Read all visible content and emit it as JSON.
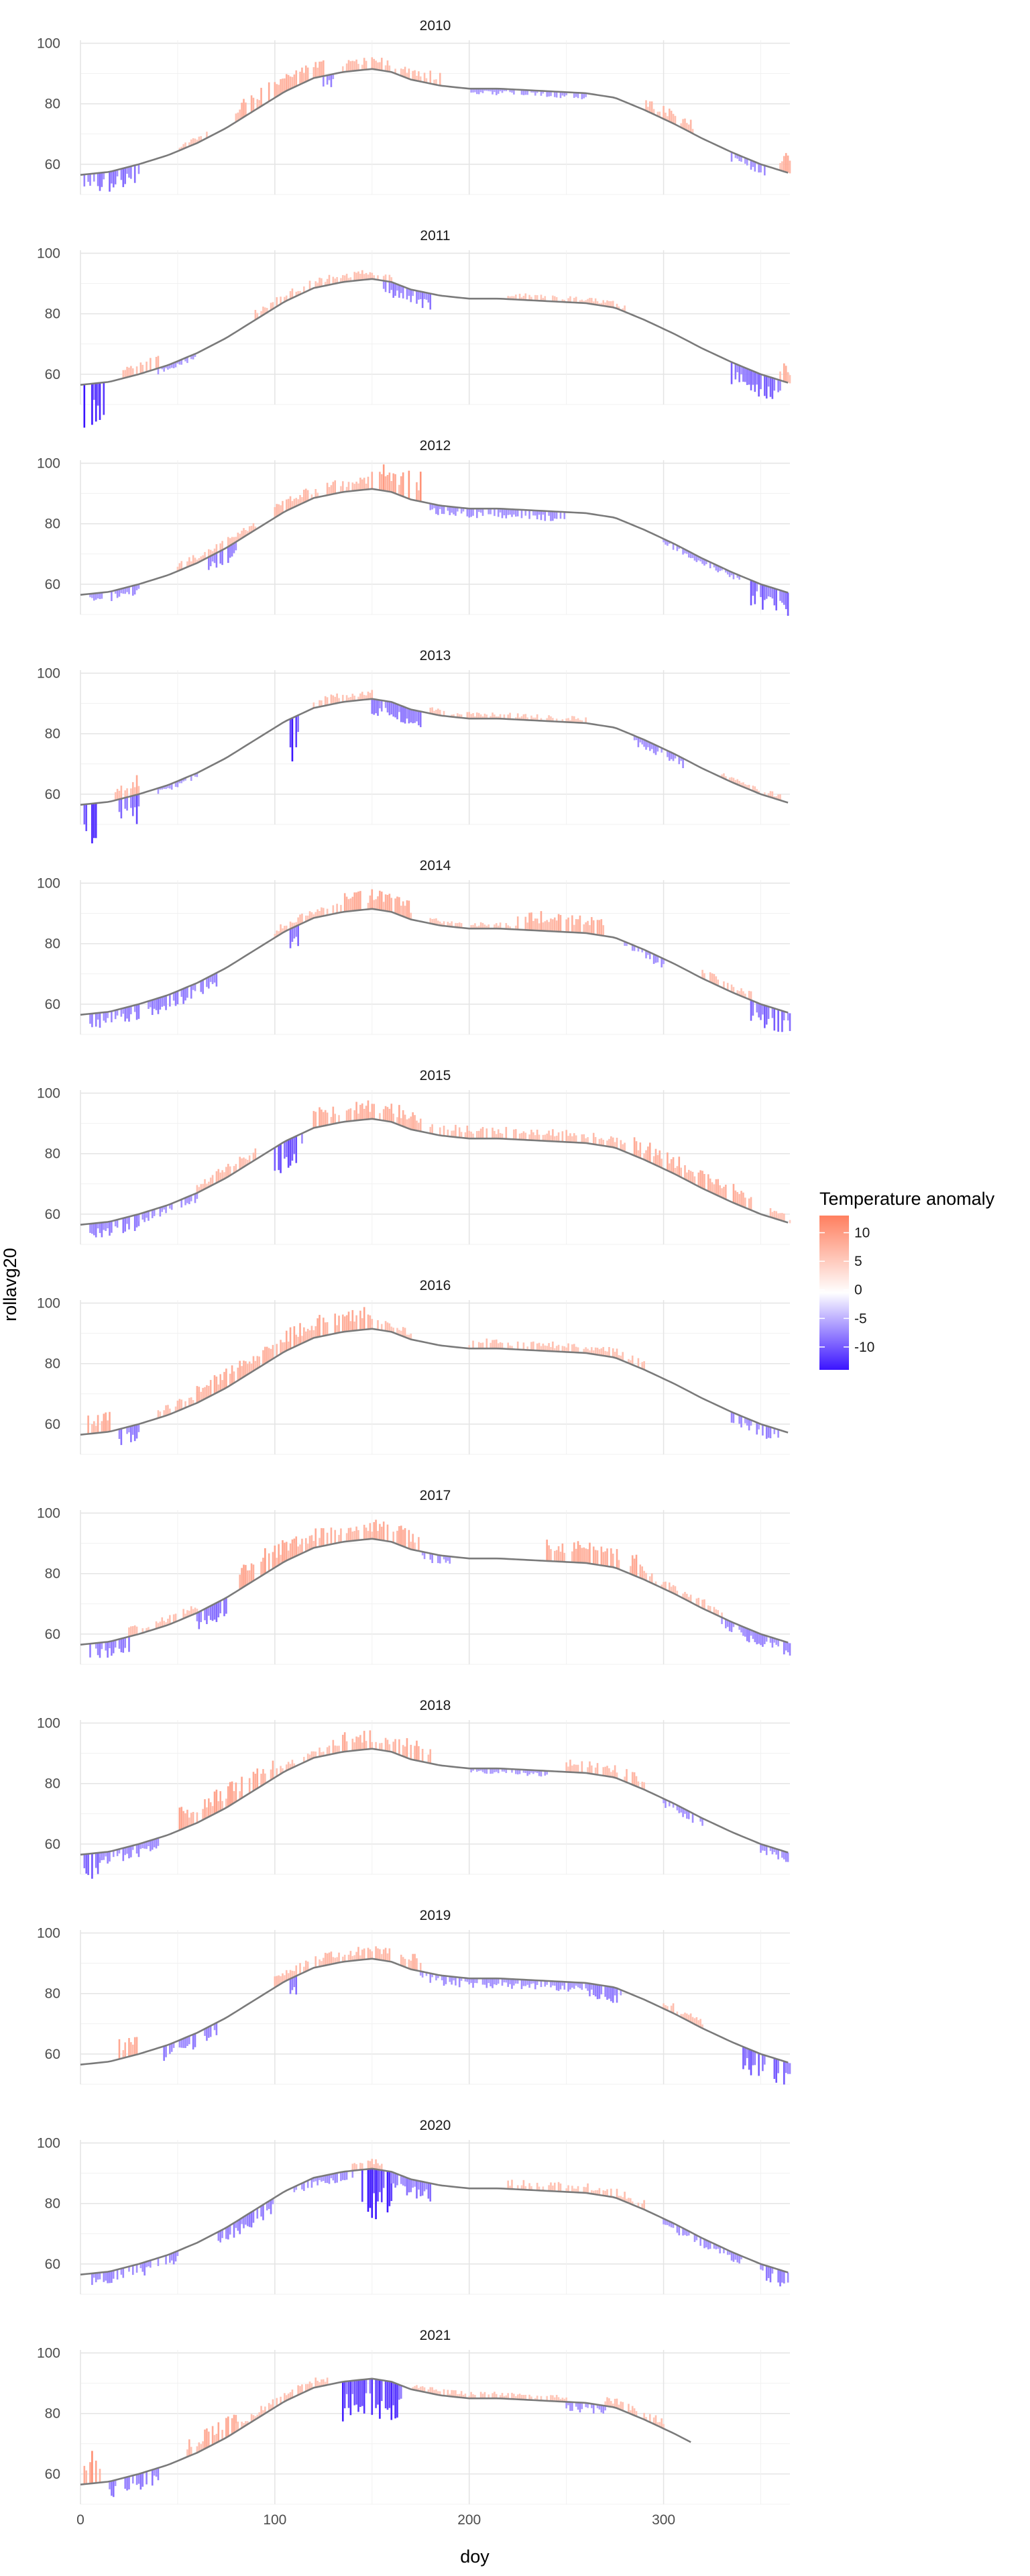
{
  "chart_data": {
    "type": "bar",
    "facet_by": "year",
    "panels": [
      "2010",
      "2011",
      "2012",
      "2013",
      "2014",
      "2015",
      "2016",
      "2017",
      "2018",
      "2019",
      "2020",
      "2021"
    ],
    "xlabel": "doy",
    "ylabel": "rollavg20",
    "xlim": [
      0,
      365
    ],
    "ylim": [
      50,
      101
    ],
    "x_ticks": [
      0,
      100,
      200,
      300
    ],
    "y_ticks": [
      60,
      80,
      100
    ],
    "grid": true,
    "legend": {
      "title": "Temperature anomaly",
      "placement": "right",
      "ticks": [
        10,
        5,
        0,
        -5,
        -10
      ],
      "range": [
        -14,
        13
      ],
      "colors": {
        "high": "#ff7f5f",
        "mid": "#ffffff",
        "low": "#3b14ff"
      }
    },
    "series_colors": {
      "rollavg_line": "#7a7a7a"
    },
    "baseline": [
      [
        0,
        56.5
      ],
      [
        15,
        57.5
      ],
      [
        30,
        60
      ],
      [
        45,
        63
      ],
      [
        60,
        67
      ],
      [
        75,
        72
      ],
      [
        90,
        78
      ],
      [
        105,
        84
      ],
      [
        120,
        88.5
      ],
      [
        135,
        90.5
      ],
      [
        150,
        91.5
      ],
      [
        160,
        90.5
      ],
      [
        170,
        88
      ],
      [
        185,
        86
      ],
      [
        200,
        85
      ],
      [
        215,
        85
      ],
      [
        230,
        84.5
      ],
      [
        245,
        84
      ],
      [
        260,
        83.5
      ],
      [
        275,
        82
      ],
      [
        290,
        78
      ],
      [
        305,
        73.5
      ],
      [
        320,
        68.5
      ],
      [
        335,
        64
      ],
      [
        350,
        60
      ],
      [
        365,
        57
      ]
    ],
    "year_end_doy": {
      "2021": 315
    },
    "anomaly_events": [
      {
        "year": "2010",
        "doy": [
          2,
          30
        ],
        "anomaly": -6
      },
      {
        "year": "2010",
        "doy": [
          50,
          65
        ],
        "anomaly": 2
      },
      {
        "year": "2010",
        "doy": [
          80,
          125
        ],
        "anomaly": 6
      },
      {
        "year": "2010",
        "doy": [
          125,
          130
        ],
        "anomaly": -4
      },
      {
        "year": "2010",
        "doy": [
          135,
          185
        ],
        "anomaly": 4
      },
      {
        "year": "2010",
        "doy": [
          200,
          260
        ],
        "anomaly": -2
      },
      {
        "year": "2010",
        "doy": [
          290,
          315
        ],
        "anomaly": 4
      },
      {
        "year": "2010",
        "doy": [
          335,
          355
        ],
        "anomaly": -3
      },
      {
        "year": "2010",
        "doy": [
          360,
          365
        ],
        "anomaly": 6
      },
      {
        "year": "2011",
        "doy": [
          2,
          12
        ],
        "anomaly": -13
      },
      {
        "year": "2011",
        "doy": [
          20,
          40
        ],
        "anomaly": 4
      },
      {
        "year": "2011",
        "doy": [
          40,
          60
        ],
        "anomaly": -2
      },
      {
        "year": "2011",
        "doy": [
          90,
          120
        ],
        "anomaly": 3
      },
      {
        "year": "2011",
        "doy": [
          120,
          160
        ],
        "anomaly": 3
      },
      {
        "year": "2011",
        "doy": [
          155,
          180
        ],
        "anomaly": -5
      },
      {
        "year": "2011",
        "doy": [
          220,
          280
        ],
        "anomaly": 2
      },
      {
        "year": "2011",
        "doy": [
          335,
          360
        ],
        "anomaly": -7
      },
      {
        "year": "2011",
        "doy": [
          360,
          365
        ],
        "anomaly": 6
      },
      {
        "year": "2012",
        "doy": [
          5,
          30
        ],
        "anomaly": -3
      },
      {
        "year": "2012",
        "doy": [
          50,
          90
        ],
        "anomaly": 3
      },
      {
        "year": "2012",
        "doy": [
          65,
          80
        ],
        "anomaly": -5
      },
      {
        "year": "2012",
        "doy": [
          100,
          150
        ],
        "anomaly": 4
      },
      {
        "year": "2012",
        "doy": [
          150,
          175
        ],
        "anomaly": 9
      },
      {
        "year": "2012",
        "doy": [
          180,
          250
        ],
        "anomaly": -3
      },
      {
        "year": "2012",
        "doy": [
          300,
          340
        ],
        "anomaly": -2
      },
      {
        "year": "2012",
        "doy": [
          345,
          365
        ],
        "anomaly": -8
      },
      {
        "year": "2013",
        "doy": [
          2,
          10
        ],
        "anomaly": -12
      },
      {
        "year": "2013",
        "doy": [
          18,
          30
        ],
        "anomaly": 6
      },
      {
        "year": "2013",
        "doy": [
          20,
          30
        ],
        "anomaly": -9
      },
      {
        "year": "2013",
        "doy": [
          40,
          60
        ],
        "anomaly": -2
      },
      {
        "year": "2013",
        "doy": [
          108,
          112
        ],
        "anomaly": -14
      },
      {
        "year": "2013",
        "doy": [
          120,
          150
        ],
        "anomaly": 3
      },
      {
        "year": "2013",
        "doy": [
          150,
          175
        ],
        "anomaly": -5
      },
      {
        "year": "2013",
        "doy": [
          180,
          260
        ],
        "anomaly": 2
      },
      {
        "year": "2013",
        "doy": [
          285,
          310
        ],
        "anomaly": -3
      },
      {
        "year": "2013",
        "doy": [
          330,
          360
        ],
        "anomaly": 2
      },
      {
        "year": "2014",
        "doy": [
          5,
          30
        ],
        "anomaly": -5
      },
      {
        "year": "2014",
        "doy": [
          35,
          70
        ],
        "anomaly": -5
      },
      {
        "year": "2014",
        "doy": [
          100,
          130
        ],
        "anomaly": 3
      },
      {
        "year": "2014",
        "doy": [
          108,
          112
        ],
        "anomaly": -8
      },
      {
        "year": "2014",
        "doy": [
          130,
          170
        ],
        "anomaly": 6
      },
      {
        "year": "2014",
        "doy": [
          180,
          225
        ],
        "anomaly": 2
      },
      {
        "year": "2014",
        "doy": [
          225,
          270
        ],
        "anomaly": 6
      },
      {
        "year": "2014",
        "doy": [
          280,
          300
        ],
        "anomaly": -3
      },
      {
        "year": "2014",
        "doy": [
          320,
          345
        ],
        "anomaly": 3
      },
      {
        "year": "2014",
        "doy": [
          345,
          365
        ],
        "anomaly": -7
      },
      {
        "year": "2015",
        "doy": [
          5,
          30
        ],
        "anomaly": -5
      },
      {
        "year": "2015",
        "doy": [
          30,
          60
        ],
        "anomaly": -3
      },
      {
        "year": "2015",
        "doy": [
          60,
          90
        ],
        "anomaly": 4
      },
      {
        "year": "2015",
        "doy": [
          100,
          115
        ],
        "anomaly": -9
      },
      {
        "year": "2015",
        "doy": [
          120,
          175
        ],
        "anomaly": 6
      },
      {
        "year": "2015",
        "doy": [
          180,
          280
        ],
        "anomaly": 4
      },
      {
        "year": "2015",
        "doy": [
          285,
          345
        ],
        "anomaly": 6
      },
      {
        "year": "2015",
        "doy": [
          355,
          365
        ],
        "anomaly": 3
      },
      {
        "year": "2016",
        "doy": [
          2,
          15
        ],
        "anomaly": 6
      },
      {
        "year": "2016",
        "doy": [
          20,
          30
        ],
        "anomaly": -5
      },
      {
        "year": "2016",
        "doy": [
          40,
          60
        ],
        "anomaly": 4
      },
      {
        "year": "2016",
        "doy": [
          60,
          100
        ],
        "anomaly": 6
      },
      {
        "year": "2016",
        "doy": [
          100,
          150
        ],
        "anomaly": 7
      },
      {
        "year": "2016",
        "doy": [
          150,
          170
        ],
        "anomaly": 3
      },
      {
        "year": "2016",
        "doy": [
          200,
          290
        ],
        "anomaly": 3
      },
      {
        "year": "2016",
        "doy": [
          335,
          360
        ],
        "anomaly": -4
      },
      {
        "year": "2017",
        "doy": [
          5,
          25
        ],
        "anomaly": -5
      },
      {
        "year": "2017",
        "doy": [
          25,
          60
        ],
        "anomaly": 3
      },
      {
        "year": "2017",
        "doy": [
          60,
          75
        ],
        "anomaly": -6
      },
      {
        "year": "2017",
        "doy": [
          80,
          110
        ],
        "anomaly": 8
      },
      {
        "year": "2017",
        "doy": [
          110,
          175
        ],
        "anomaly": 6
      },
      {
        "year": "2017",
        "doy": [
          175,
          190
        ],
        "anomaly": -3
      },
      {
        "year": "2017",
        "doy": [
          240,
          290
        ],
        "anomaly": 7
      },
      {
        "year": "2017",
        "doy": [
          290,
          330
        ],
        "anomaly": 3
      },
      {
        "year": "2017",
        "doy": [
          330,
          365
        ],
        "anomaly": -4
      },
      {
        "year": "2018",
        "doy": [
          2,
          10
        ],
        "anomaly": -9
      },
      {
        "year": "2018",
        "doy": [
          10,
          40
        ],
        "anomaly": -4
      },
      {
        "year": "2018",
        "doy": [
          50,
          100
        ],
        "anomaly": 7
      },
      {
        "year": "2018",
        "doy": [
          100,
          130
        ],
        "anomaly": 3
      },
      {
        "year": "2018",
        "doy": [
          130,
          180
        ],
        "anomaly": 6
      },
      {
        "year": "2018",
        "doy": [
          200,
          240
        ],
        "anomaly": -2
      },
      {
        "year": "2018",
        "doy": [
          250,
          290
        ],
        "anomaly": 4
      },
      {
        "year": "2018",
        "doy": [
          300,
          320
        ],
        "anomaly": -3
      },
      {
        "year": "2018",
        "doy": [
          350,
          365
        ],
        "anomaly": -3
      },
      {
        "year": "2019",
        "doy": [
          20,
          30
        ],
        "anomaly": 6
      },
      {
        "year": "2019",
        "doy": [
          40,
          70
        ],
        "anomaly": -5
      },
      {
        "year": "2019",
        "doy": [
          100,
          160
        ],
        "anomaly": 4
      },
      {
        "year": "2019",
        "doy": [
          108,
          112
        ],
        "anomaly": -7
      },
      {
        "year": "2019",
        "doy": [
          165,
          175
        ],
        "anomaly": 6
      },
      {
        "year": "2019",
        "doy": [
          175,
          260
        ],
        "anomaly": -3
      },
      {
        "year": "2019",
        "doy": [
          260,
          280
        ],
        "anomaly": -5
      },
      {
        "year": "2019",
        "doy": [
          300,
          320
        ],
        "anomaly": 3
      },
      {
        "year": "2019",
        "doy": [
          340,
          365
        ],
        "anomaly": -8
      },
      {
        "year": "2020",
        "doy": [
          5,
          50
        ],
        "anomaly": -4
      },
      {
        "year": "2020",
        "doy": [
          70,
          100
        ],
        "anomaly": -5
      },
      {
        "year": "2020",
        "doy": [
          110,
          140
        ],
        "anomaly": -3
      },
      {
        "year": "2020",
        "doy": [
          140,
          155
        ],
        "anomaly": 3
      },
      {
        "year": "2020",
        "doy": [
          145,
          160
        ],
        "anomaly": -15
      },
      {
        "year": "2020",
        "doy": [
          160,
          180
        ],
        "anomaly": -6
      },
      {
        "year": "2020",
        "doy": [
          220,
          290
        ],
        "anomaly": 3
      },
      {
        "year": "2020",
        "doy": [
          300,
          340
        ],
        "anomaly": -3
      },
      {
        "year": "2020",
        "doy": [
          350,
          365
        ],
        "anomaly": -5
      },
      {
        "year": "2021",
        "doy": [
          2,
          10
        ],
        "anomaly": 10
      },
      {
        "year": "2021",
        "doy": [
          15,
          40
        ],
        "anomaly": -5
      },
      {
        "year": "2021",
        "doy": [
          55,
          80
        ],
        "anomaly": 6
      },
      {
        "year": "2021",
        "doy": [
          80,
          130
        ],
        "anomaly": 3
      },
      {
        "year": "2021",
        "doy": [
          130,
          165
        ],
        "anomaly": -12
      },
      {
        "year": "2021",
        "doy": [
          170,
          250
        ],
        "anomaly": 2
      },
      {
        "year": "2021",
        "doy": [
          250,
          270
        ],
        "anomaly": -3
      },
      {
        "year": "2021",
        "doy": [
          270,
          300
        ],
        "anomaly": 3
      }
    ]
  }
}
